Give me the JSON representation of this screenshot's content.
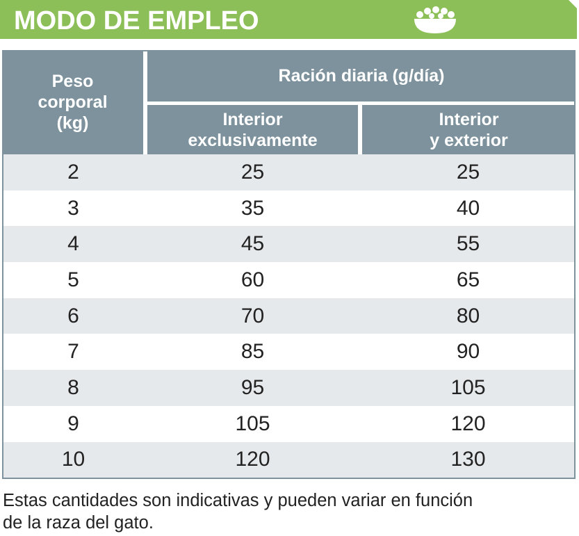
{
  "header": {
    "title": "MODO DE EMPLEO"
  },
  "table": {
    "columns": {
      "weight": "Peso\ncorporal\n(kg)",
      "group": "Ración diaria (g/día)",
      "indoor": "Interior\nexclusivamente",
      "mixed": "Interior\ny exterior"
    },
    "rows": [
      [
        2,
        25,
        25
      ],
      [
        3,
        35,
        40
      ],
      [
        4,
        45,
        55
      ],
      [
        5,
        60,
        65
      ],
      [
        6,
        70,
        80
      ],
      [
        7,
        85,
        90
      ],
      [
        8,
        95,
        105
      ],
      [
        9,
        105,
        120
      ],
      [
        10,
        120,
        130
      ]
    ]
  },
  "footnote": "Estas cantidades son indicativas y pueden variar en función\nde la raza del gato."
}
